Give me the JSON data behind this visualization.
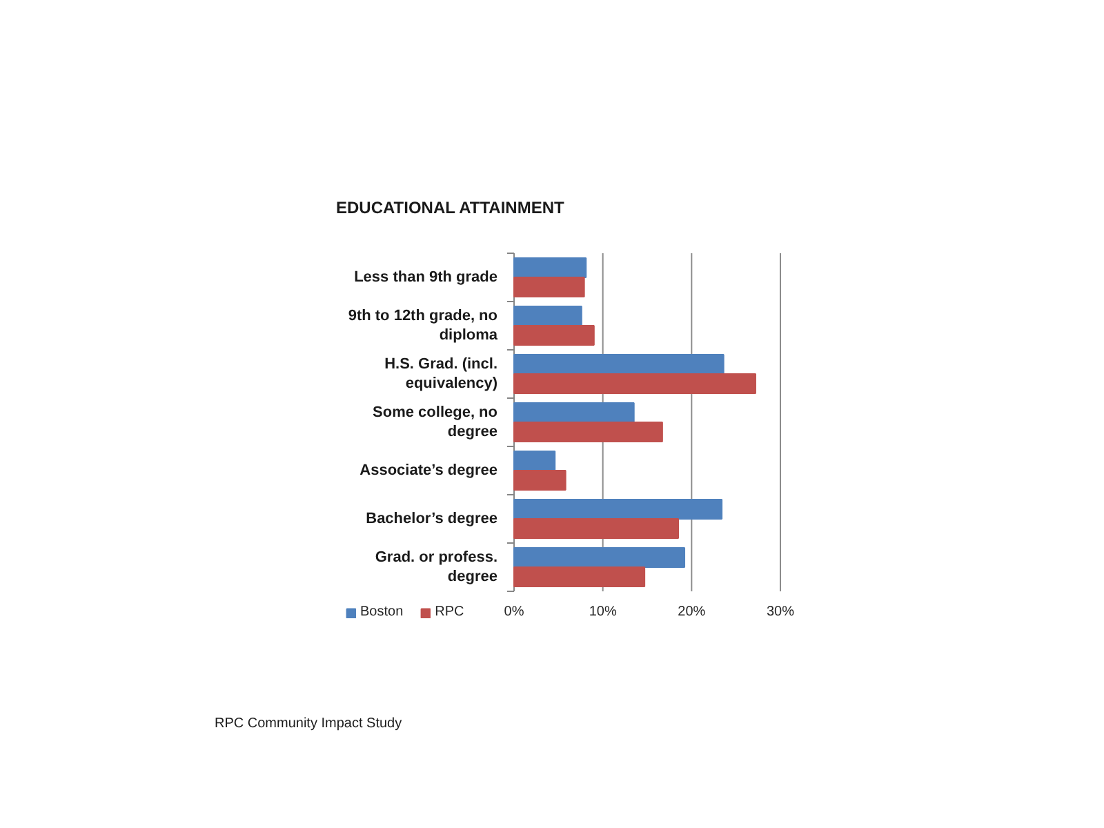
{
  "chart_data": {
    "type": "bar",
    "orientation": "horizontal",
    "title": "EDUCATIONAL ATTAINMENT",
    "categories": [
      "Less than 9th grade",
      "9th to 12th grade, no diploma",
      "H.S. Grad. (incl. equivalency)",
      "Some college, no degree",
      "Associate’s degree",
      "Bachelor’s degree",
      "Grad. or profess. degree"
    ],
    "series": [
      {
        "name": "Boston",
        "color": "#4f81bd",
        "values": [
          8.1,
          7.6,
          23.6,
          13.5,
          4.6,
          23.4,
          19.2
        ]
      },
      {
        "name": "RPC",
        "color": "#c0504d",
        "values": [
          7.9,
          9.0,
          27.2,
          16.7,
          5.8,
          18.5,
          14.7
        ]
      }
    ],
    "xlim": [
      0,
      30
    ],
    "xticks": [
      {
        "value": 0,
        "label": "0%"
      },
      {
        "value": 10,
        "label": "10%"
      },
      {
        "value": 20,
        "label": "20%"
      },
      {
        "value": 30,
        "label": "30%"
      }
    ],
    "grid": "x",
    "legend": "bottom left",
    "annotations": [
      "RPC Community Impact Study"
    ]
  }
}
